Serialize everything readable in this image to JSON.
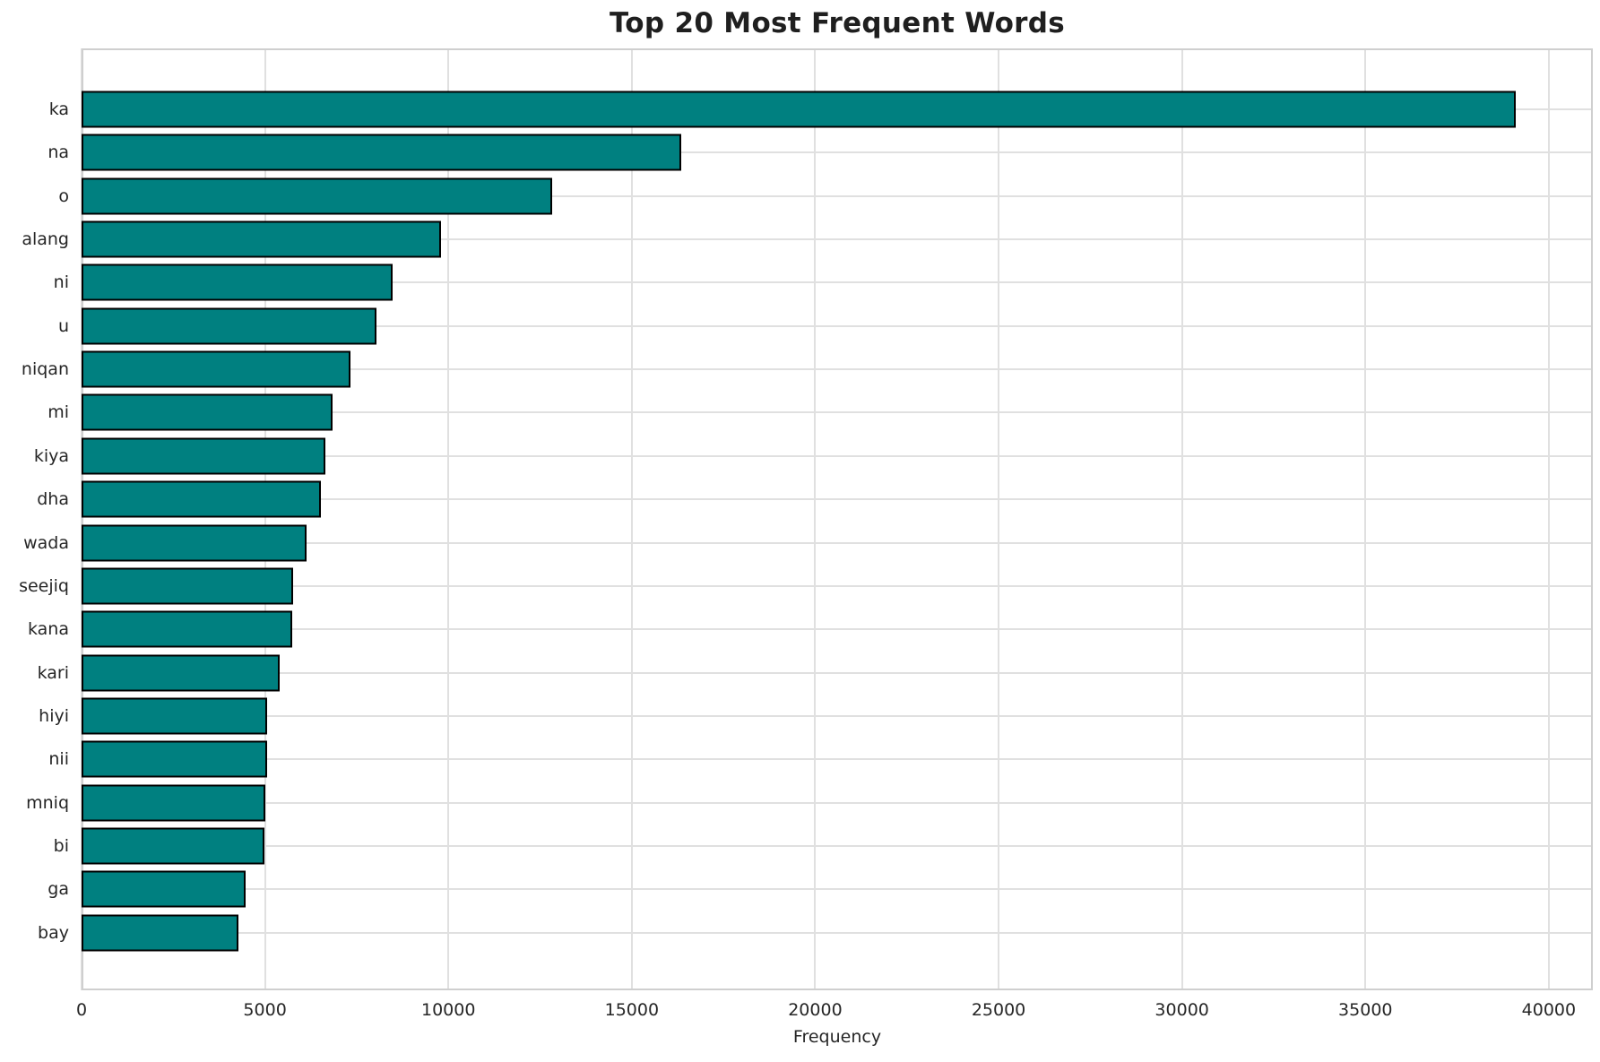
{
  "title": "Top 20 Most Frequent Words",
  "chart_data": {
    "type": "bar",
    "orientation": "horizontal",
    "title": "Top 20 Most Frequent Words",
    "xlabel": "Frequency",
    "ylabel": "",
    "categories": [
      "ka",
      "na",
      "o",
      "alang",
      "ni",
      "u",
      "niqan",
      "mi",
      "kiya",
      "dha",
      "wada",
      "seejiq",
      "kana",
      "kari",
      "hiyi",
      "nii",
      "mniq",
      "bi",
      "ga",
      "bay"
    ],
    "values": [
      39100,
      16350,
      12830,
      9800,
      8470,
      8050,
      7340,
      6840,
      6650,
      6520,
      6140,
      5770,
      5740,
      5410,
      5060,
      5050,
      5010,
      4990,
      4480,
      4280
    ],
    "xticks": [
      0,
      5000,
      10000,
      15000,
      20000,
      25000,
      30000,
      35000,
      40000
    ],
    "xtick_labels": [
      "0",
      "5000",
      "10000",
      "15000",
      "20000",
      "25000",
      "30000",
      "35000",
      "40000"
    ],
    "xlim": [
      0,
      41200
    ],
    "grid": true,
    "legend": "none",
    "bar_color": "#008080",
    "bar_edge_color": "#000000",
    "gridline_color": "#e0e0e0",
    "text_color": "#262626"
  }
}
